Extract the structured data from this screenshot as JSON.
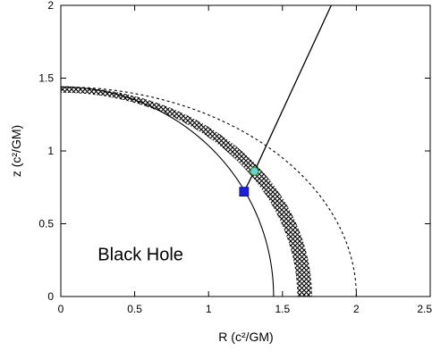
{
  "chart_data": {
    "type": "line",
    "title": "",
    "xlabel": "R (c²/GM)",
    "ylabel": "z (c²/GM)",
    "xlim": [
      0,
      2.5
    ],
    "ylim": [
      0,
      2
    ],
    "x_ticks": [
      "0",
      "0.5",
      "1",
      "1.5",
      "2",
      "2.5"
    ],
    "y_ticks": [
      "0",
      "0.5",
      "1",
      "1.5",
      "2"
    ],
    "grid": false,
    "legend": "none",
    "annotations": [
      {
        "text": "Black Hole",
        "x": 0.25,
        "y": 0.25
      }
    ],
    "series": [
      {
        "style": "solid",
        "shape": "quarter-ellipse",
        "R_semi_axis": 1.44,
        "z_semi_axis": 1.44
      },
      {
        "style": "dashed",
        "shape": "quarter-ellipse",
        "R_semi_axis": 2.0,
        "z_semi_axis": 1.44
      },
      {
        "style": "hatched-band",
        "shape": "quarter-ellipse-band",
        "inner_R": 1.6,
        "outer_R": 1.7,
        "inner_z": 1.4,
        "outer_z": 1.44
      },
      {
        "style": "solid",
        "shape": "line",
        "points": [
          [
            1.31,
            0.86
          ],
          [
            1.83,
            2.0
          ]
        ]
      },
      {
        "style": "solid",
        "shape": "line",
        "points": [
          [
            1.24,
            0.72
          ],
          [
            1.31,
            0.86
          ]
        ]
      }
    ],
    "markers": [
      {
        "shape": "square",
        "color": "#1f1fd6",
        "x": 1.24,
        "y": 0.72
      },
      {
        "shape": "circle",
        "color": "#6fcfd8",
        "edge": "#2a8f2a",
        "x": 1.31,
        "y": 0.86
      }
    ]
  }
}
